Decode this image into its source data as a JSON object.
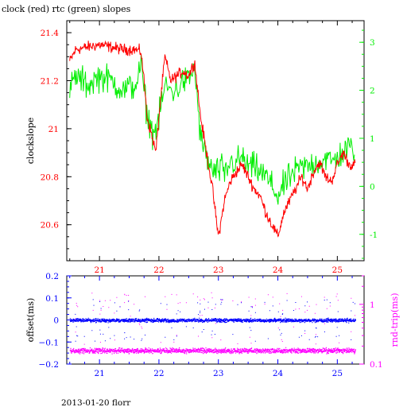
{
  "title": "clock (red) rtc (green) slopes",
  "footer": "2013-01-20 florr",
  "colors": {
    "axis": "#000000",
    "clock": "#ff0000",
    "rtc": "#00ee00",
    "offset": "#0000ff",
    "rndtrip": "#ff00ff"
  },
  "chart_data": [
    {
      "type": "line",
      "ylabel": "clockslope",
      "xlim": [
        20.45,
        25.45
      ],
      "ylim": [
        20.45,
        21.45
      ],
      "y2lim": [
        -1.55,
        3.45
      ],
      "x_ticks": [
        21,
        22,
        23,
        24,
        25
      ],
      "y_ticks": [
        20.6,
        20.8,
        21,
        21.2,
        21.4
      ],
      "y_tick_labels": [
        "20.6",
        "20.8",
        "21",
        "21.2",
        "21.4"
      ],
      "y2_ticks": [
        -1,
        0,
        1,
        2,
        3
      ],
      "series": [
        {
          "name": "clock",
          "axis": "left",
          "x": [
            20.5,
            20.6,
            20.8,
            21.0,
            21.2,
            21.4,
            21.6,
            21.7,
            21.75,
            21.8,
            21.85,
            21.9,
            21.95,
            22.0,
            22.1,
            22.2,
            22.3,
            22.4,
            22.5,
            22.6,
            22.7,
            22.8,
            22.9,
            23.0,
            23.05,
            23.1,
            23.2,
            23.3,
            23.4,
            23.5,
            23.6,
            23.7,
            23.8,
            23.9,
            24.0,
            24.1,
            24.2,
            24.3,
            24.4,
            24.5,
            24.6,
            24.7,
            24.8,
            24.9,
            25.0,
            25.1,
            25.2,
            25.3
          ],
          "values": [
            21.28,
            21.33,
            21.34,
            21.35,
            21.34,
            21.33,
            21.33,
            21.32,
            21.2,
            21.05,
            21.0,
            20.95,
            20.9,
            21.05,
            21.3,
            21.2,
            21.22,
            21.24,
            21.22,
            21.28,
            21.05,
            20.9,
            20.75,
            20.55,
            20.62,
            20.7,
            20.78,
            20.82,
            20.85,
            20.8,
            20.75,
            20.72,
            20.65,
            20.6,
            20.55,
            20.65,
            20.7,
            20.75,
            20.8,
            20.75,
            20.82,
            20.86,
            20.8,
            20.78,
            20.85,
            20.9,
            20.85,
            20.85
          ]
        },
        {
          "name": "rtc",
          "axis": "right",
          "x": [
            20.5,
            20.6,
            20.8,
            21.0,
            21.2,
            21.4,
            21.6,
            21.7,
            21.75,
            21.8,
            21.85,
            21.9,
            21.95,
            22.0,
            22.1,
            22.2,
            22.3,
            22.4,
            22.5,
            22.6,
            22.7,
            22.8,
            22.9,
            23.0,
            23.05,
            23.1,
            23.2,
            23.3,
            23.4,
            23.5,
            23.6,
            23.7,
            23.8,
            23.9,
            24.0,
            24.1,
            24.2,
            24.3,
            24.4,
            24.5,
            24.6,
            24.7,
            24.8,
            24.9,
            25.0,
            25.1,
            25.2,
            25.3
          ],
          "values": [
            2.0,
            2.3,
            2.1,
            2.3,
            2.2,
            2.0,
            2.1,
            2.5,
            2.0,
            1.5,
            1.3,
            1.1,
            1.2,
            1.4,
            2.1,
            2.0,
            2.0,
            2.2,
            2.2,
            2.5,
            1.0,
            0.6,
            0.3,
            0.3,
            0.4,
            0.2,
            0.5,
            0.5,
            0.6,
            0.4,
            0.4,
            0.3,
            0.2,
            0.0,
            -0.2,
            0.0,
            0.2,
            0.3,
            0.4,
            0.4,
            0.5,
            0.5,
            0.6,
            0.5,
            0.6,
            0.7,
            0.8,
            0.8
          ]
        }
      ]
    },
    {
      "type": "scatter",
      "ylabel": "offset(ms)",
      "y2label": "rnd-trip(ms)",
      "xlim": [
        20.45,
        25.45
      ],
      "ylim": [
        -0.2,
        0.2
      ],
      "x_ticks": [
        21,
        22,
        23,
        24,
        25
      ],
      "y_ticks": [
        -0.2,
        -0.1,
        0,
        0.1,
        0.2
      ],
      "y_tick_labels": [
        "−0.2",
        "−0.1",
        "0",
        "0.1",
        "0.2"
      ],
      "y2_log": true,
      "y2lim": [
        0.1,
        3.0
      ],
      "y2_ticks": [
        0.1,
        1
      ],
      "y2_tick_labels": [
        "0.1",
        "1"
      ],
      "series": [
        {
          "name": "offset",
          "axis": "left",
          "x": [
            20.5,
            21.0,
            21.5,
            22.0,
            22.5,
            23.0,
            23.5,
            24.0,
            24.5,
            25.0,
            25.3
          ],
          "values": [
            0.0,
            0.0,
            0.0,
            0.0,
            0.0,
            0.0,
            0.0,
            0.0,
            0.0,
            0.0,
            0.0
          ]
        },
        {
          "name": "rnd-trip",
          "axis": "right",
          "x": [
            20.5,
            21.0,
            21.5,
            22.0,
            22.5,
            23.0,
            23.5,
            24.0,
            24.5,
            25.0,
            25.3
          ],
          "values": [
            0.17,
            0.17,
            0.17,
            0.17,
            0.17,
            0.17,
            0.17,
            0.17,
            0.17,
            0.17,
            0.17
          ]
        }
      ]
    }
  ]
}
